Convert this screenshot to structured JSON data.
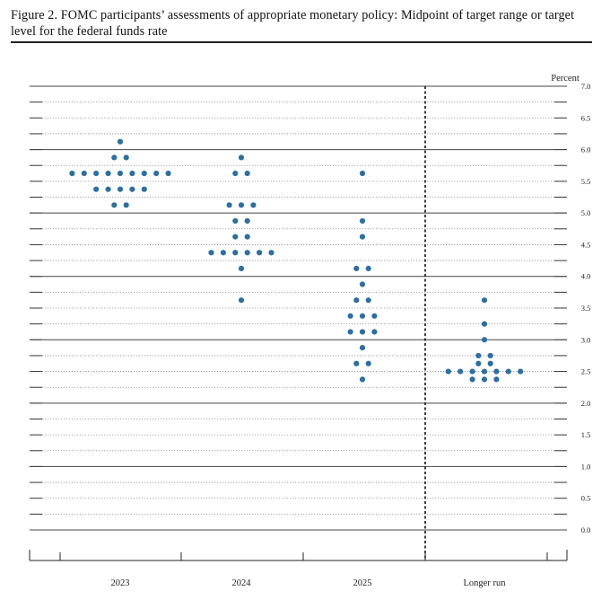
{
  "figure": {
    "title": "Figure 2.  FOMC participants’ assessments of appropriate monetary policy:  Midpoint of target range or target level for the federal funds rate"
  },
  "chart_data": {
    "type": "scatter",
    "title": "Figure 2.  FOMC participants’ assessments of appropriate monetary policy:  Midpoint of target range or target level for the federal funds rate",
    "unit_label": "Percent",
    "categories": [
      "2023",
      "2024",
      "2025",
      "Longer run"
    ],
    "ylim": [
      0.0,
      7.0
    ],
    "y_ticks": [
      "0.0",
      "0.5",
      "1.0",
      "1.5",
      "2.0",
      "2.5",
      "3.0",
      "3.5",
      "4.0",
      "4.5",
      "5.0",
      "5.5",
      "6.0",
      "6.5",
      "7.0"
    ],
    "grid": true,
    "marker_color": "#2f6f9e",
    "groups": [
      {
        "category": "2023",
        "rows": [
          {
            "y": 6.125,
            "count": 1
          },
          {
            "y": 5.875,
            "count": 2
          },
          {
            "y": 5.625,
            "count": 9
          },
          {
            "y": 5.375,
            "count": 5
          },
          {
            "y": 5.125,
            "count": 2
          }
        ]
      },
      {
        "category": "2024",
        "rows": [
          {
            "y": 5.875,
            "count": 1
          },
          {
            "y": 5.625,
            "count": 2
          },
          {
            "y": 5.125,
            "count": 3
          },
          {
            "y": 4.875,
            "count": 2
          },
          {
            "y": 4.625,
            "count": 2
          },
          {
            "y": 4.375,
            "count": 6
          },
          {
            "y": 4.125,
            "count": 1
          },
          {
            "y": 3.625,
            "count": 1
          }
        ]
      },
      {
        "category": "2025",
        "rows": [
          {
            "y": 5.625,
            "count": 1
          },
          {
            "y": 4.875,
            "count": 1
          },
          {
            "y": 4.625,
            "count": 1
          },
          {
            "y": 4.125,
            "count": 2
          },
          {
            "y": 3.875,
            "count": 1
          },
          {
            "y": 3.625,
            "count": 2
          },
          {
            "y": 3.375,
            "count": 3
          },
          {
            "y": 3.125,
            "count": 3
          },
          {
            "y": 2.875,
            "count": 1
          },
          {
            "y": 2.625,
            "count": 2
          },
          {
            "y": 2.375,
            "count": 1
          }
        ]
      },
      {
        "category": "Longer run",
        "rows": [
          {
            "y": 3.625,
            "count": 1
          },
          {
            "y": 3.25,
            "count": 1
          },
          {
            "y": 3.0,
            "count": 1
          },
          {
            "y": 2.75,
            "count": 2
          },
          {
            "y": 2.625,
            "count": 2
          },
          {
            "y": 2.5,
            "count": 7
          },
          {
            "y": 2.375,
            "count": 3
          }
        ]
      }
    ]
  }
}
